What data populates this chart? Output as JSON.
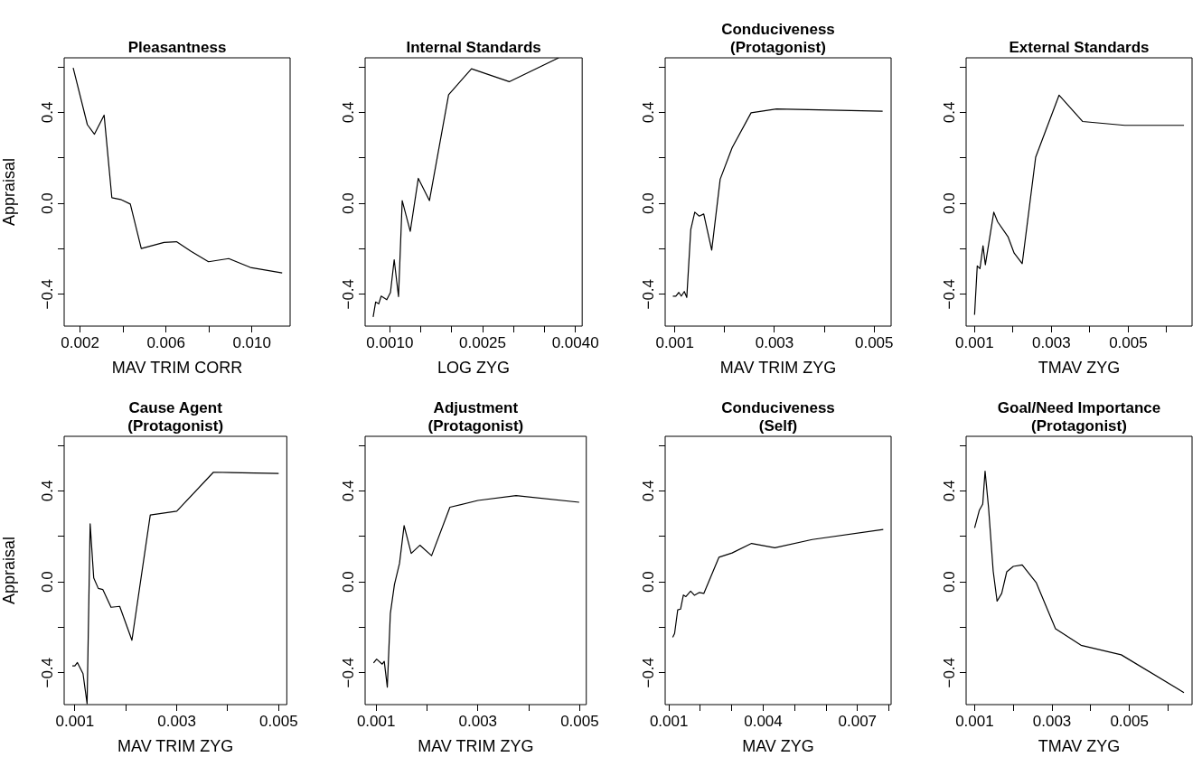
{
  "chart_data": [
    {
      "type": "line",
      "title": "Pleasantness",
      "xlabel": "MAV TRIM CORR",
      "ylabel": "Appraisal",
      "color": "#000000",
      "x": [
        0.00168,
        0.00234,
        0.00267,
        0.00312,
        0.00348,
        0.00389,
        0.00434,
        0.00485,
        0.00591,
        0.00649,
        0.00717,
        0.00798,
        0.00892,
        0.00993,
        0.01141
      ],
      "values": [
        0.596,
        0.346,
        0.304,
        0.388,
        0.025,
        0.017,
        -0.003,
        -0.199,
        -0.172,
        -0.169,
        -0.211,
        -0.257,
        -0.243,
        -0.282,
        -0.306
      ],
      "xlim": [
        0.00126,
        0.01178
      ],
      "ylim": [
        -0.54,
        0.64
      ],
      "xticks": [
        0.002,
        {
          "value": 0.004,
          "label": null
        },
        0.006,
        {
          "value": 0.008,
          "label": null
        },
        {
          "value": 0.01,
          "label": "0.010"
        }
      ],
      "yticks": [
        {
          "value": -0.4,
          "label": "−0.4"
        },
        {
          "value": -0.2,
          "label": null
        },
        {
          "value": 0,
          "label": "0.0"
        },
        {
          "value": 0.2,
          "label": null
        },
        {
          "value": 0.4,
          "label": "0.4"
        },
        {
          "value": 0.6,
          "label": null
        }
      ]
    },
    {
      "type": "line",
      "title": "Internal Standards",
      "xlabel": "LOG ZYG",
      "color": "#000000",
      "x": [
        0.00073,
        0.00077,
        0.00082,
        0.00086,
        0.00095,
        0.00101,
        0.00107,
        0.00114,
        0.0012,
        0.00133,
        0.00146,
        0.00164,
        0.00195,
        0.00232,
        0.00293,
        0.00373
      ],
      "values": [
        -0.5,
        -0.434,
        -0.442,
        -0.408,
        -0.424,
        -0.392,
        -0.248,
        -0.41,
        0.012,
        -0.123,
        0.11,
        0.012,
        0.478,
        0.592,
        0.535,
        0.64
      ],
      "xlim": [
        0.0006,
        0.00411
      ],
      "ylim": [
        -0.54,
        0.64
      ],
      "xticks": [
        {
          "value": 0.001,
          "label": "0.0010"
        },
        {
          "value": 0.0015,
          "label": null
        },
        {
          "value": 0.002,
          "label": null
        },
        {
          "value": 0.0025,
          "label": "0.0025"
        },
        {
          "value": 0.003,
          "label": null
        },
        {
          "value": 0.0035,
          "label": null
        },
        {
          "value": 0.004,
          "label": "0.0040"
        }
      ],
      "yticks": [
        {
          "value": -0.4,
          "label": "−0.4"
        },
        {
          "value": -0.2,
          "label": null
        },
        {
          "value": 0,
          "label": "0.0"
        },
        {
          "value": 0.2,
          "label": null
        },
        {
          "value": 0.4,
          "label": "0.4"
        },
        {
          "value": 0.6,
          "label": null
        }
      ]
    },
    {
      "type": "line",
      "title": "Conduciveness\n(Protagonist)",
      "xlabel": "MAV TRIM ZYG",
      "color": "#000000",
      "x": [
        0.00096,
        0.00102,
        0.00108,
        0.00113,
        0.00119,
        0.00124,
        0.00132,
        0.0014,
        0.00149,
        0.00158,
        0.00174,
        0.00191,
        0.00215,
        0.00253,
        0.00304,
        0.00517
      ],
      "values": [
        -0.408,
        -0.408,
        -0.392,
        -0.408,
        -0.388,
        -0.414,
        -0.115,
        -0.039,
        -0.056,
        -0.047,
        -0.206,
        0.106,
        0.245,
        0.398,
        0.415,
        0.405
      ],
      "xlim": [
        0.000806,
        0.00534
      ],
      "ylim": [
        -0.54,
        0.64
      ],
      "xticks": [
        0.001,
        {
          "value": 0.002,
          "label": null
        },
        0.003,
        {
          "value": 0.004,
          "label": null
        },
        0.005
      ],
      "yticks": [
        {
          "value": -0.4,
          "label": "−0.4"
        },
        {
          "value": -0.2,
          "label": null
        },
        {
          "value": 0,
          "label": "0.0"
        },
        {
          "value": 0.2,
          "label": null
        },
        {
          "value": 0.4,
          "label": "0.4"
        },
        {
          "value": 0.6,
          "label": null
        }
      ]
    },
    {
      "type": "line",
      "title": "External Standards",
      "xlabel": "TMAV ZYG",
      "color": "#000000",
      "x": [
        0.001,
        0.00107,
        0.00114,
        0.00122,
        0.00128,
        0.0015,
        0.0016,
        0.00187,
        0.00203,
        0.00224,
        0.00259,
        0.0032,
        0.00381,
        0.00491,
        0.00645
      ],
      "values": [
        -0.49,
        -0.275,
        -0.287,
        -0.187,
        -0.27,
        -0.039,
        -0.081,
        -0.147,
        -0.219,
        -0.265,
        0.203,
        0.476,
        0.36,
        0.343,
        0.343
      ],
      "xlim": [
        0.00078,
        0.00666
      ],
      "ylim": [
        -0.54,
        0.64
      ],
      "xticks": [
        0.001,
        {
          "value": 0.002,
          "label": null
        },
        0.003,
        {
          "value": 0.004,
          "label": null
        },
        0.005,
        {
          "value": 0.006,
          "label": null
        }
      ],
      "yticks": [
        {
          "value": -0.4,
          "label": "−0.4"
        },
        {
          "value": -0.2,
          "label": null
        },
        {
          "value": 0,
          "label": "0.0"
        },
        {
          "value": 0.2,
          "label": null
        },
        {
          "value": 0.4,
          "label": "0.4"
        },
        {
          "value": 0.6,
          "label": null
        }
      ]
    },
    {
      "type": "line",
      "title": "Cause Agent\n(Protagonist)",
      "xlabel": "MAV TRIM ZYG",
      "ylabel": "Appraisal",
      "color": "#000000",
      "x": [
        0.00095,
        0.001,
        0.00105,
        0.00116,
        0.00124,
        0.0013,
        0.00137,
        0.00146,
        0.00155,
        0.00171,
        0.00188,
        0.00212,
        0.00248,
        0.003,
        0.00372,
        0.005
      ],
      "values": [
        -0.37,
        -0.37,
        -0.355,
        -0.404,
        -0.536,
        0.255,
        0.017,
        -0.029,
        -0.034,
        -0.112,
        -0.108,
        -0.257,
        0.294,
        0.311,
        0.482,
        0.477
      ],
      "xlim": [
        0.00079,
        0.00516
      ],
      "ylim": [
        -0.54,
        0.64
      ],
      "xticks": [
        0.001,
        {
          "value": 0.002,
          "label": null
        },
        0.003,
        {
          "value": 0.004,
          "label": null
        },
        0.005
      ],
      "yticks": [
        {
          "value": -0.4,
          "label": "−0.4"
        },
        {
          "value": -0.2,
          "label": null
        },
        {
          "value": 0,
          "label": "0.0"
        },
        {
          "value": 0.2,
          "label": null
        },
        {
          "value": 0.4,
          "label": "0.4"
        },
        {
          "value": 0.6,
          "label": null
        }
      ]
    },
    {
      "type": "line",
      "title": "Adjustment\n(Protagonist)",
      "xlabel": "MAV TRIM ZYG",
      "color": "#000000",
      "x": [
        0.00095,
        0.00101,
        0.00112,
        0.00116,
        0.00122,
        0.00128,
        0.00136,
        0.00146,
        0.00155,
        0.00169,
        0.00186,
        0.00209,
        0.00245,
        0.003,
        0.00375,
        0.00499
      ],
      "values": [
        -0.357,
        -0.34,
        -0.362,
        -0.35,
        -0.463,
        -0.139,
        -0.012,
        0.081,
        0.247,
        0.125,
        0.161,
        0.115,
        0.328,
        0.358,
        0.379,
        0.35
      ],
      "xlim": [
        0.000784,
        0.00513
      ],
      "ylim": [
        -0.54,
        0.64
      ],
      "xticks": [
        0.001,
        {
          "value": 0.002,
          "label": null
        },
        0.003,
        {
          "value": 0.004,
          "label": null
        },
        0.005
      ],
      "yticks": [
        {
          "value": -0.4,
          "label": "−0.4"
        },
        {
          "value": -0.2,
          "label": null
        },
        {
          "value": 0,
          "label": "0.0"
        },
        {
          "value": 0.2,
          "label": null
        },
        {
          "value": 0.4,
          "label": "0.4"
        },
        {
          "value": 0.6,
          "label": null
        }
      ]
    },
    {
      "type": "line",
      "title": "Conduciveness\n(Self)",
      "xlabel": "MAV ZYG",
      "color": "#000000",
      "x": [
        0.00112,
        0.00118,
        0.00128,
        0.00137,
        0.00146,
        0.00154,
        0.00169,
        0.00181,
        0.00196,
        0.00211,
        0.00259,
        0.00301,
        0.00363,
        0.00437,
        0.00556,
        0.00782
      ],
      "values": [
        -0.244,
        -0.227,
        -0.123,
        -0.12,
        -0.058,
        -0.065,
        -0.041,
        -0.059,
        -0.047,
        -0.051,
        0.108,
        0.127,
        0.169,
        0.15,
        0.186,
        0.23
      ],
      "xlim": [
        0.00088,
        0.00807
      ],
      "ylim": [
        -0.54,
        0.64
      ],
      "xticks": [
        0.001,
        {
          "value": 0.002,
          "label": null
        },
        {
          "value": 0.003,
          "label": null
        },
        0.004,
        {
          "value": 0.005,
          "label": null
        },
        {
          "value": 0.006,
          "label": null
        },
        0.007,
        {
          "value": 0.008,
          "label": null
        }
      ],
      "yticks": [
        {
          "value": -0.4,
          "label": "−0.4"
        },
        {
          "value": -0.2,
          "label": null
        },
        {
          "value": 0,
          "label": "0.0"
        },
        {
          "value": 0.2,
          "label": null
        },
        {
          "value": 0.4,
          "label": "0.4"
        },
        {
          "value": 0.6,
          "label": null
        }
      ]
    },
    {
      "type": "line",
      "title": "Goal/Need Importance\n(Protagonist)",
      "xlabel": "TMAV ZYG",
      "color": "#000000",
      "x": [
        0.001,
        0.00112,
        0.00121,
        0.00127,
        0.00136,
        0.00148,
        0.00158,
        0.0017,
        0.00183,
        0.002,
        0.00223,
        0.00259,
        0.00309,
        0.00375,
        0.00479,
        0.00641
      ],
      "values": [
        0.237,
        0.314,
        0.342,
        0.487,
        0.326,
        0.047,
        -0.085,
        -0.051,
        0.044,
        0.068,
        0.074,
        -0.003,
        -0.206,
        -0.279,
        -0.321,
        -0.487
      ],
      "xlim": [
        0.00078,
        0.00662
      ],
      "ylim": [
        -0.54,
        0.64
      ],
      "xticks": [
        0.001,
        {
          "value": 0.002,
          "label": null
        },
        0.003,
        {
          "value": 0.004,
          "label": null
        },
        0.005,
        {
          "value": 0.006,
          "label": null
        }
      ],
      "yticks": [
        {
          "value": -0.4,
          "label": "−0.4"
        },
        {
          "value": -0.2,
          "label": null
        },
        {
          "value": 0,
          "label": "0.0"
        },
        {
          "value": 0.2,
          "label": null
        },
        {
          "value": 0.4,
          "label": "0.4"
        },
        {
          "value": 0.6,
          "label": null
        }
      ]
    }
  ]
}
